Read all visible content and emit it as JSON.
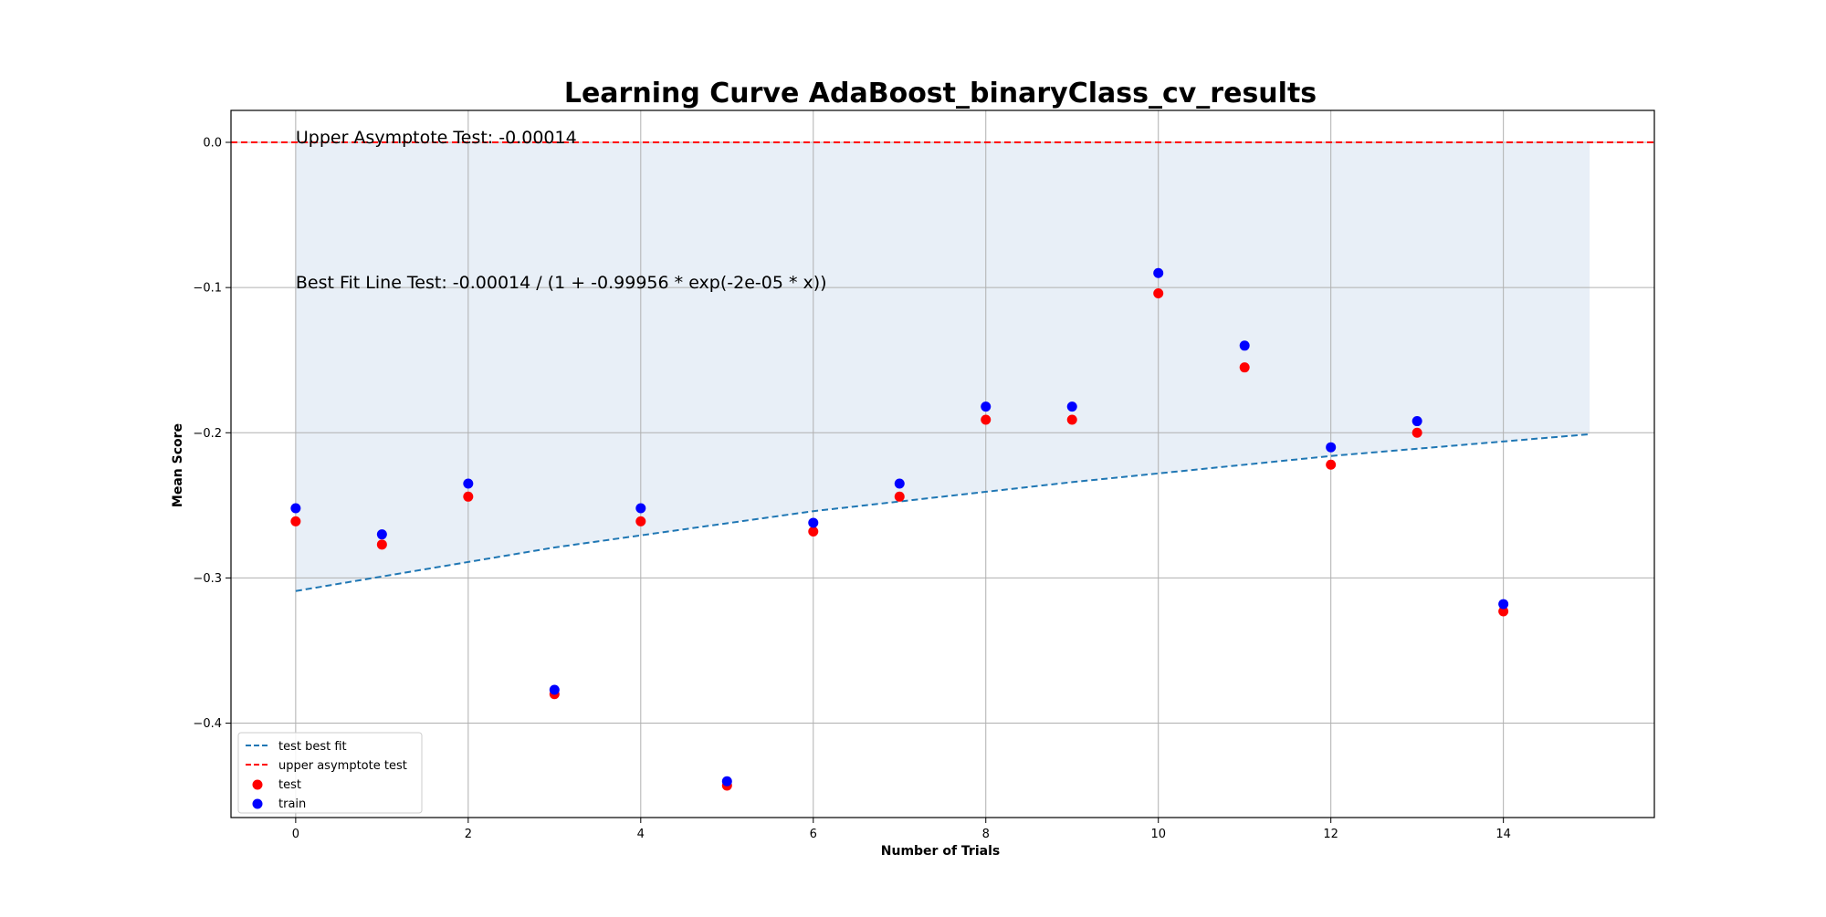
{
  "chart_data": {
    "type": "scatter",
    "title": "Learning Curve AdaBoost_binaryClass_cv_results",
    "xlabel": "Number of Trials",
    "ylabel": "Mean Score",
    "xlim": [
      -0.75,
      15.75
    ],
    "ylim": [
      -0.465,
      0.022
    ],
    "xticks": [
      0,
      2,
      4,
      6,
      8,
      10,
      12,
      14
    ],
    "yticks": [
      0.0,
      -0.1,
      -0.2,
      -0.3,
      -0.4
    ],
    "ytick_labels": [
      "0.0",
      "−0.1",
      "−0.2",
      "−0.3",
      "−0.4"
    ],
    "grid": true,
    "legend_position": "lower-left",
    "series": [
      {
        "name": "test",
        "kind": "scatter",
        "color": "#ff0000",
        "x": [
          0,
          1,
          2,
          3,
          4,
          5,
          6,
          7,
          8,
          9,
          10,
          11,
          12,
          13,
          14
        ],
        "y": [
          -0.261,
          -0.277,
          -0.244,
          -0.38,
          -0.261,
          -0.443,
          -0.268,
          -0.244,
          -0.191,
          -0.191,
          -0.104,
          -0.155,
          -0.222,
          -0.2,
          -0.323
        ]
      },
      {
        "name": "train",
        "kind": "scatter",
        "color": "#0000ff",
        "x": [
          0,
          1,
          2,
          3,
          4,
          5,
          6,
          7,
          8,
          9,
          10,
          11,
          12,
          13,
          14
        ],
        "y": [
          -0.252,
          -0.27,
          -0.235,
          -0.377,
          -0.252,
          -0.44,
          -0.262,
          -0.235,
          -0.182,
          -0.182,
          -0.09,
          -0.14,
          -0.21,
          -0.192,
          -0.318
        ]
      }
    ],
    "best_fit": {
      "name": "test best fit",
      "color": "#1f77b4",
      "x": [
        0,
        3,
        6,
        9,
        12,
        15
      ],
      "y": [
        -0.309,
        -0.279,
        -0.254,
        -0.234,
        -0.216,
        -0.201
      ]
    },
    "asymptote": {
      "name": "upper asymptote test",
      "color": "#ff0000",
      "y": 0.0
    },
    "fill_region": {
      "color": "#dbe7f3",
      "x_start": 0,
      "x_end": 15
    },
    "annotations": [
      {
        "text": "Upper Asymptote Test: -0.00014",
        "x": 0,
        "y": 0.0
      },
      {
        "text": "Best Fit Line Test: -0.00014 / (1 + -0.99956 * exp(-2e-05 * x))",
        "x": 0,
        "y": -0.1
      }
    ],
    "legend": [
      {
        "label": "test best fit",
        "kind": "dashed-line",
        "color": "#1f77b4"
      },
      {
        "label": "upper asymptote test",
        "kind": "dashed-line",
        "color": "#ff0000"
      },
      {
        "label": "test",
        "kind": "marker",
        "color": "#ff0000"
      },
      {
        "label": "train",
        "kind": "marker",
        "color": "#0000ff"
      }
    ]
  }
}
